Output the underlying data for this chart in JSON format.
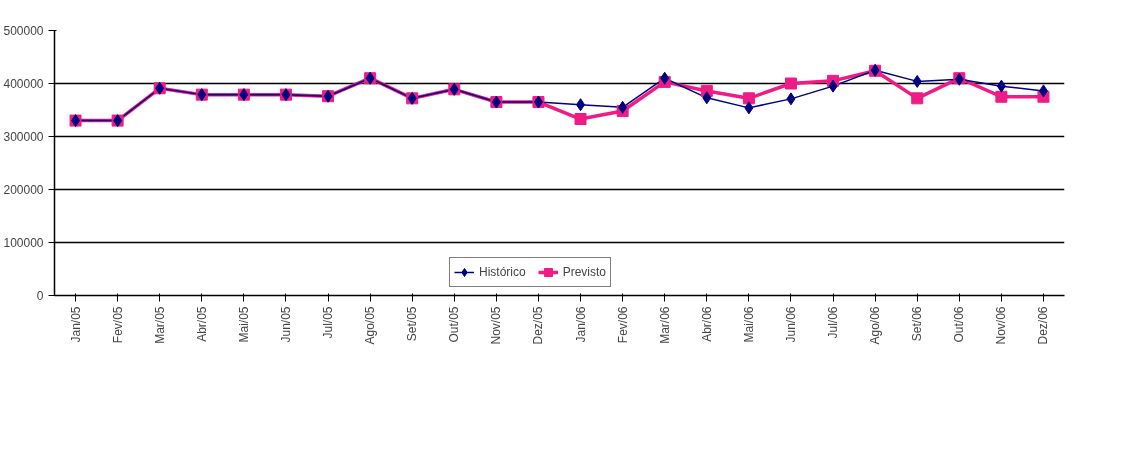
{
  "chart_data": {
    "type": "line",
    "categories": [
      "Jan/05",
      "Fev/05",
      "Mar/05",
      "Abr/05",
      "Mai/05",
      "Jun/05",
      "Jul/05",
      "Ago/05",
      "Set/05",
      "Out/05",
      "Nov/05",
      "Dez/05",
      "Jan/06",
      "Fev/06",
      "Mar/06",
      "Abr/06",
      "Mai/06",
      "Jun/06",
      "Jul/06",
      "Ago/06",
      "Set/06",
      "Out/06",
      "Nov/06",
      "Dez/06"
    ],
    "series": [
      {
        "name": "Histórico",
        "color": "#000080",
        "marker": "diamond",
        "values": [
          330000,
          330000,
          391000,
          379000,
          379000,
          379000,
          376000,
          410000,
          372000,
          389000,
          365000,
          365000,
          360000,
          355000,
          410000,
          373000,
          354000,
          371000,
          395000,
          425000,
          404000,
          408000,
          395000,
          386000
        ]
      },
      {
        "name": "Previsto",
        "color": "#ee1c84",
        "marker": "square",
        "values": [
          330000,
          330000,
          391000,
          379000,
          379000,
          379000,
          376000,
          410000,
          372000,
          389000,
          365000,
          365000,
          333000,
          348000,
          403000,
          386000,
          372000,
          400000,
          405000,
          424000,
          372000,
          410000,
          375000,
          375000
        ]
      }
    ],
    "ylim": [
      0,
      500000
    ],
    "yticks": [
      0,
      100000,
      200000,
      300000,
      400000,
      500000
    ],
    "grid": "y",
    "legend": "bottom",
    "line_style": "solid"
  }
}
